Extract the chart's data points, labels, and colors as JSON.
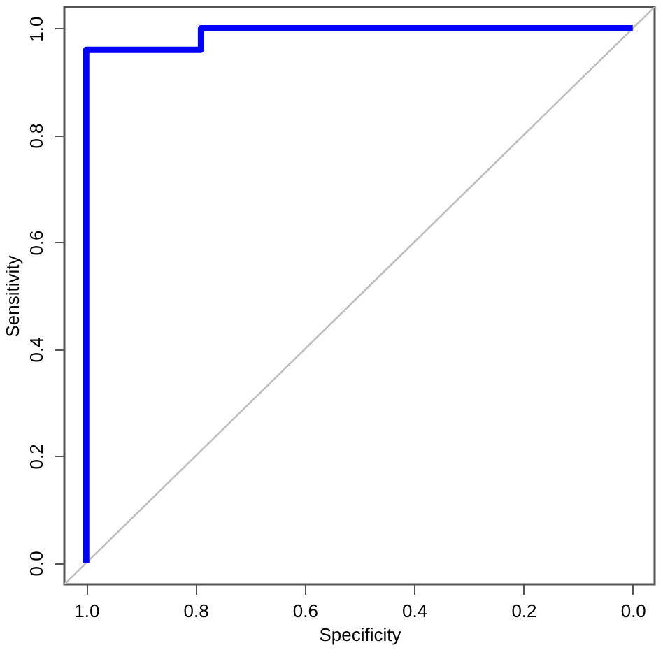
{
  "chart_data": {
    "type": "line",
    "xlabel": "Specificity",
    "ylabel": "Sensitivity",
    "xlim": [
      1.04,
      -0.04
    ],
    "ylim": [
      -0.04,
      1.04
    ],
    "xticks": [
      {
        "value": 1,
        "label": "1.0"
      },
      0.8,
      0.6,
      0.4,
      0.2,
      {
        "value": 0,
        "label": "0.0"
      }
    ],
    "yticks": [
      {
        "value": 0,
        "label": "0.0"
      },
      0.2,
      0.4,
      0.6,
      0.8,
      {
        "value": 1,
        "label": "1.0"
      }
    ],
    "grid": false,
    "marker": "none",
    "line_style": "solid",
    "series": [
      {
        "color": "#bebebe",
        "x": [
          1.04,
          -0.04
        ],
        "values": [
          -0.04,
          1.04
        ]
      },
      {
        "color": "#0000ff",
        "x": [
          1.0,
          1.0,
          0.79,
          0.79,
          0.0
        ],
        "values": [
          0.0,
          0.96,
          0.96,
          1.0,
          1.0
        ]
      }
    ]
  }
}
